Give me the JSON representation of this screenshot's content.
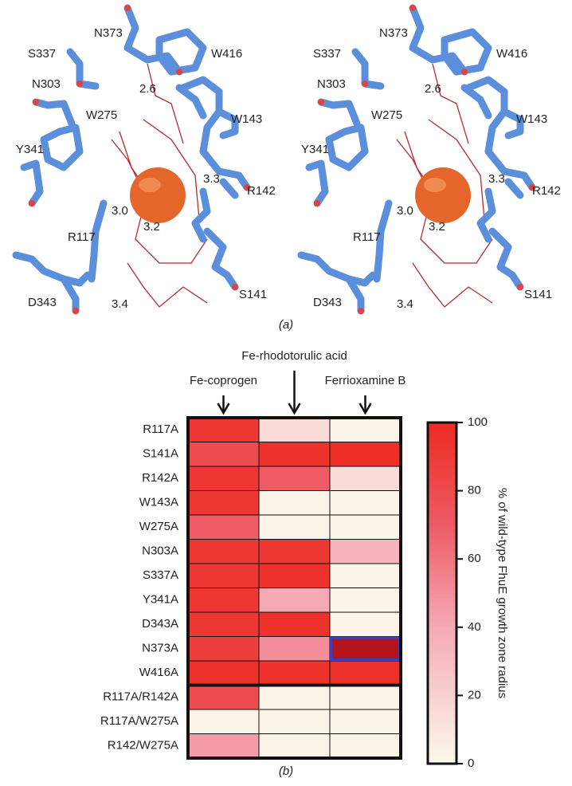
{
  "panel_a": {
    "caption": "(a)",
    "labels": [
      "N373",
      "S337",
      "W416",
      "N303",
      "2.6",
      "W275",
      "W143",
      "Y341",
      "R142",
      "3.3",
      "3.0",
      "3.2",
      "R117",
      "S141",
      "3.4",
      "D343"
    ]
  },
  "chart_data": {
    "type": "heatmap",
    "caption": "(b)",
    "columns": [
      "Fe-coprogen",
      "Fe-rhodotorulic acid",
      "Ferrioxamine B"
    ],
    "categories": [
      "R117A",
      "S141A",
      "R142A",
      "W143A",
      "W275A",
      "N303A",
      "S337A",
      "Y341A",
      "D343A",
      "N373A",
      "W416A",
      "R117A/R142A",
      "R117A/W275A",
      "R142/W275A"
    ],
    "values": [
      [
        92,
        15,
        2
      ],
      [
        80,
        95,
        97
      ],
      [
        92,
        70,
        15
      ],
      [
        92,
        2,
        2
      ],
      [
        70,
        2,
        2
      ],
      [
        92,
        92,
        35
      ],
      [
        92,
        95,
        2
      ],
      [
        92,
        40,
        2
      ],
      [
        92,
        95,
        2
      ],
      [
        88,
        50,
        120
      ],
      [
        95,
        95,
        95
      ],
      [
        80,
        2,
        2
      ],
      [
        2,
        2,
        2
      ],
      [
        45,
        2,
        2
      ]
    ],
    "highlight": [
      9,
      2
    ],
    "highlight_color": "#3a3fc0",
    "colorbar_label": "% of wild-type FhuE growth zone radius",
    "clim": [
      0,
      100
    ],
    "cticks": [
      0,
      20,
      40,
      60,
      80,
      100
    ]
  }
}
